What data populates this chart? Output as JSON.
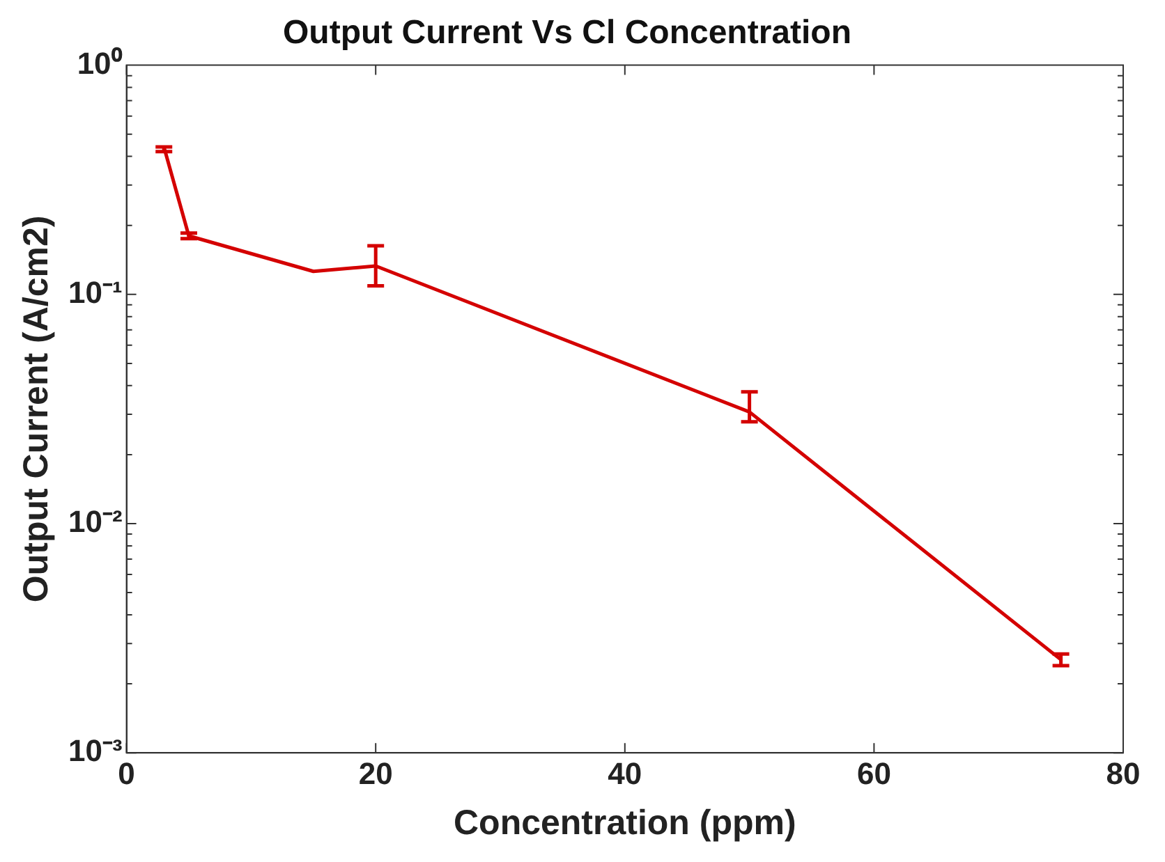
{
  "chart_data": {
    "type": "line",
    "title": "Output Current Vs Cl Concentration",
    "xlabel": "Concentration (ppm)",
    "ylabel": "Output Current (A/cm2)",
    "log": "y",
    "grid": false,
    "legend": false,
    "marker": "none",
    "line_style": "solid",
    "xlim": [
      0,
      80
    ],
    "xticks": [
      0,
      20,
      40,
      60,
      80
    ],
    "ylim": [
      0.001,
      1
    ],
    "yticks": [
      {
        "value": 0.001,
        "label": "10⁻³"
      },
      {
        "value": 0.01,
        "label": "10⁻²"
      },
      {
        "value": 0.1,
        "label": "10⁻¹"
      },
      {
        "value": 1,
        "label": "10⁰"
      }
    ],
    "series": [
      {
        "color": "#d40000",
        "x": [
          3,
          5,
          15,
          20,
          50,
          75
        ],
        "values": [
          0.44,
          0.18,
          0.126,
          0.133,
          0.0307,
          0.00255
        ],
        "errors": [
          [
            0.42,
            0.44
          ],
          [
            0.175,
            0.185
          ],
          null,
          [
            0.109,
            0.163
          ],
          [
            0.0278,
            0.0376
          ],
          [
            0.0024,
            0.0027
          ]
        ]
      }
    ]
  }
}
